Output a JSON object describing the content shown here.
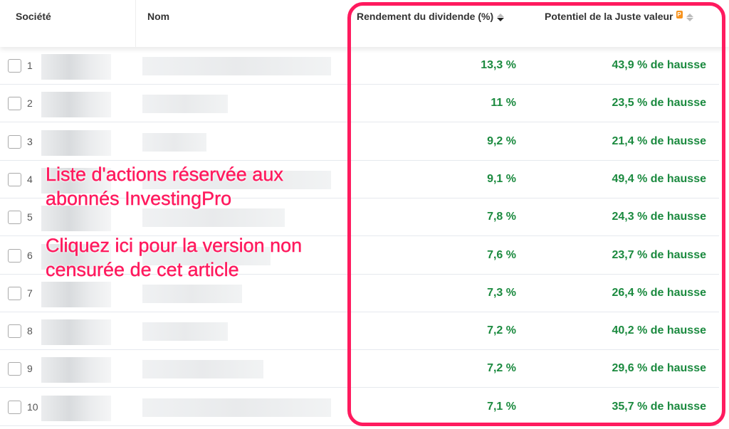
{
  "header": {
    "societe": "Société",
    "nom": "Nom",
    "dividend": "Rendement du dividende (%)",
    "fair_value": "Potentiel de la Juste valeur",
    "pro_badge": "P"
  },
  "sort": {
    "dividend": "descending",
    "fair_value": "none"
  },
  "rows": [
    {
      "n": "1",
      "dividend": "13,3 %",
      "fair_value": "43,9 % de hausse"
    },
    {
      "n": "2",
      "dividend": "11 %",
      "fair_value": "23,5 % de hausse"
    },
    {
      "n": "3",
      "dividend": "9,2 %",
      "fair_value": "21,4 % de hausse"
    },
    {
      "n": "4",
      "dividend": "9,1 %",
      "fair_value": "49,4 % de hausse"
    },
    {
      "n": "5",
      "dividend": "7,8 %",
      "fair_value": "24,3 % de hausse"
    },
    {
      "n": "6",
      "dividend": "7,6 %",
      "fair_value": "23,7 % de hausse"
    },
    {
      "n": "7",
      "dividend": "7,3 %",
      "fair_value": "26,4 % de hausse"
    },
    {
      "n": "8",
      "dividend": "7,2 %",
      "fair_value": "40,2 % de hausse"
    },
    {
      "n": "9",
      "dividend": "7,2 %",
      "fair_value": "29,6 % de hausse"
    },
    {
      "n": "10",
      "dividend": "7,1 %",
      "fair_value": "35,7 % de hausse"
    }
  ],
  "overlay": {
    "line1": "Liste d'actions réservée aux",
    "line2": "abonnés InvestingPro",
    "line3": "Cliquez ici pour la version non",
    "line4": "censurée de cet article"
  },
  "colors": {
    "accent": "#ff1a5e",
    "positive": "#1b8a3f"
  }
}
